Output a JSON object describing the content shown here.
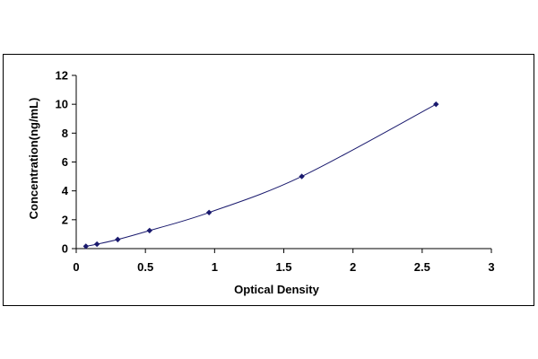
{
  "chart_data": {
    "type": "scatter",
    "title": "",
    "xlabel": "Optical Density",
    "ylabel": "Concentration(ng/mL)",
    "xlim": [
      0,
      3
    ],
    "ylim": [
      0,
      12
    ],
    "x_ticks": [
      "0",
      "0.5",
      "1",
      "1.5",
      "2",
      "2.5",
      "3"
    ],
    "y_ticks": [
      "0",
      "2",
      "4",
      "6",
      "8",
      "10",
      "12"
    ],
    "grid": false,
    "legend": "none",
    "series": [
      {
        "x": [
          0.07,
          0.15,
          0.3,
          0.53,
          0.96,
          1.63,
          2.6
        ],
        "y": [
          0.16,
          0.31,
          0.63,
          1.25,
          2.5,
          5,
          10
        ],
        "marker": "diamond",
        "line": "smooth",
        "color": "#1a1a6e"
      }
    ]
  }
}
